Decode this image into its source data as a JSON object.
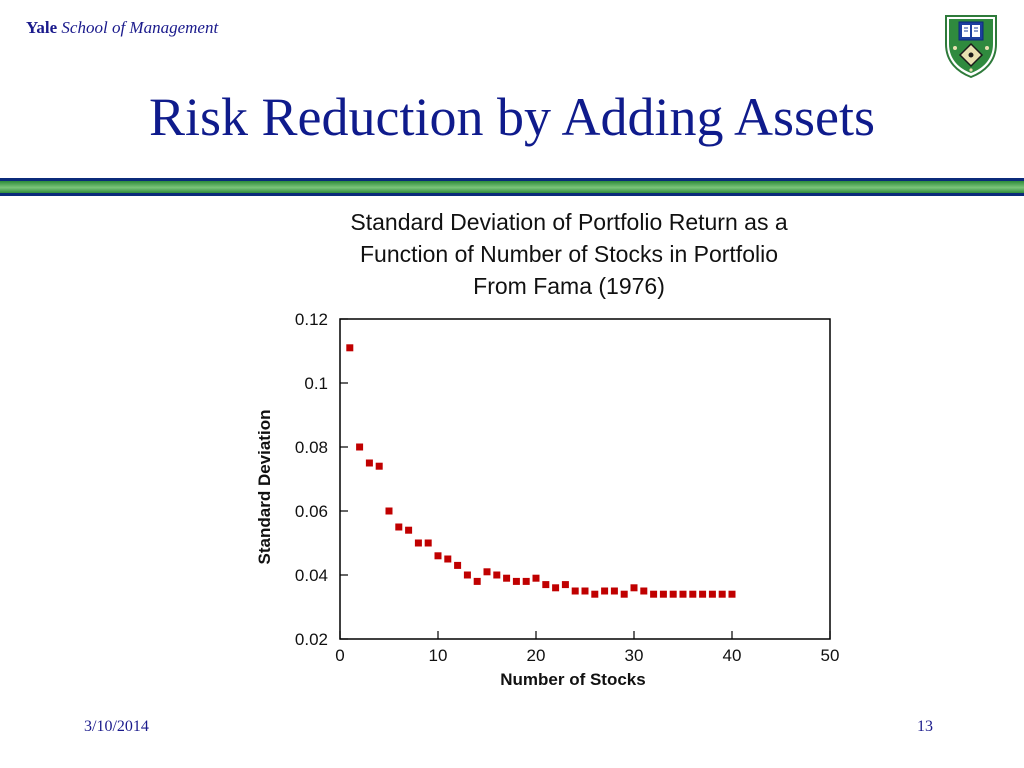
{
  "header": {
    "brand_strong": "Yale",
    "brand_rest": "School of Management",
    "crest_icon": "yale-shield-icon"
  },
  "slide": {
    "title": "Risk Reduction by Adding Assets"
  },
  "footer": {
    "date": "3/10/2014",
    "page": "13"
  },
  "colors": {
    "title": "#0f1b8c",
    "rule_blue": "#0b2a7a",
    "rule_green": "#2e8b3a",
    "marker": "#c00000"
  },
  "chart_data": {
    "type": "scatter",
    "title_lines": [
      "Standard Deviation of Portfolio Return as a",
      "Function of Number of Stocks in Portfolio",
      "From Fama (1976)"
    ],
    "xlabel": "Number of Stocks",
    "ylabel": "Standard Deviation",
    "xlim": [
      0,
      50
    ],
    "ylim": [
      0.02,
      0.12
    ],
    "xticks": [
      0,
      10,
      20,
      30,
      40,
      50
    ],
    "xtick_labels": [
      "0",
      "10",
      "20",
      "30",
      "40",
      "50"
    ],
    "yticks": [
      0.02,
      0.04,
      0.06,
      0.08,
      0.1,
      0.12
    ],
    "ytick_labels": [
      "0.02",
      "0.04",
      "0.06",
      "0.08",
      "0.1",
      "0.12"
    ],
    "grid": false,
    "legend": false,
    "points": [
      {
        "x": 1,
        "y": 0.111
      },
      {
        "x": 2,
        "y": 0.08
      },
      {
        "x": 3,
        "y": 0.075
      },
      {
        "x": 4,
        "y": 0.074
      },
      {
        "x": 5,
        "y": 0.06
      },
      {
        "x": 6,
        "y": 0.055
      },
      {
        "x": 7,
        "y": 0.054
      },
      {
        "x": 8,
        "y": 0.05
      },
      {
        "x": 9,
        "y": 0.05
      },
      {
        "x": 10,
        "y": 0.046
      },
      {
        "x": 11,
        "y": 0.045
      },
      {
        "x": 12,
        "y": 0.043
      },
      {
        "x": 13,
        "y": 0.04
      },
      {
        "x": 14,
        "y": 0.038
      },
      {
        "x": 15,
        "y": 0.041
      },
      {
        "x": 16,
        "y": 0.04
      },
      {
        "x": 17,
        "y": 0.039
      },
      {
        "x": 18,
        "y": 0.038
      },
      {
        "x": 19,
        "y": 0.038
      },
      {
        "x": 20,
        "y": 0.039
      },
      {
        "x": 21,
        "y": 0.037
      },
      {
        "x": 22,
        "y": 0.036
      },
      {
        "x": 23,
        "y": 0.037
      },
      {
        "x": 24,
        "y": 0.035
      },
      {
        "x": 25,
        "y": 0.035
      },
      {
        "x": 26,
        "y": 0.034
      },
      {
        "x": 27,
        "y": 0.035
      },
      {
        "x": 28,
        "y": 0.035
      },
      {
        "x": 29,
        "y": 0.034
      },
      {
        "x": 30,
        "y": 0.036
      },
      {
        "x": 31,
        "y": 0.035
      },
      {
        "x": 32,
        "y": 0.034
      },
      {
        "x": 33,
        "y": 0.034
      },
      {
        "x": 34,
        "y": 0.034
      },
      {
        "x": 35,
        "y": 0.034
      },
      {
        "x": 36,
        "y": 0.034
      },
      {
        "x": 37,
        "y": 0.034
      },
      {
        "x": 38,
        "y": 0.034
      },
      {
        "x": 39,
        "y": 0.034
      },
      {
        "x": 40,
        "y": 0.034
      }
    ]
  }
}
